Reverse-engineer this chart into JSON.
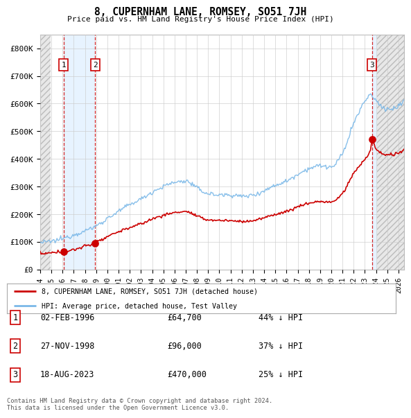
{
  "title": "8, CUPERNHAM LANE, ROMSEY, SO51 7JH",
  "subtitle": "Price paid vs. HM Land Registry's House Price Index (HPI)",
  "xlim_start": 1994.0,
  "xlim_end": 2026.5,
  "ylim": [
    0,
    850000
  ],
  "yticks": [
    0,
    100000,
    200000,
    300000,
    400000,
    500000,
    600000,
    700000,
    800000
  ],
  "ytick_labels": [
    "£0",
    "£100K",
    "£200K",
    "£300K",
    "£400K",
    "£500K",
    "£600K",
    "£700K",
    "£800K"
  ],
  "sale_dates": [
    1996.085,
    1998.9,
    2023.63
  ],
  "sale_prices": [
    64700,
    96000,
    470000
  ],
  "sale_labels": [
    "1",
    "2",
    "3"
  ],
  "hpi_color": "#7ab8e8",
  "price_color": "#cc0000",
  "dashed_vline_color": "#cc0000",
  "shaded_region_color": "#ddeeff",
  "background_color": "#ffffff",
  "grid_color": "#cccccc",
  "legend_label_price": "8, CUPERNHAM LANE, ROMSEY, SO51 7JH (detached house)",
  "legend_label_hpi": "HPI: Average price, detached house, Test Valley",
  "table_rows": [
    {
      "num": "1",
      "date": "02-FEB-1996",
      "price": "£64,700",
      "hpi": "44% ↓ HPI"
    },
    {
      "num": "2",
      "date": "27-NOV-1998",
      "price": "£96,000",
      "hpi": "37% ↓ HPI"
    },
    {
      "num": "3",
      "date": "18-AUG-2023",
      "price": "£470,000",
      "hpi": "25% ↓ HPI"
    }
  ],
  "footnote": "Contains HM Land Registry data © Crown copyright and database right 2024.\nThis data is licensed under the Open Government Licence v3.0.",
  "xtick_years": [
    1994,
    1995,
    1996,
    1997,
    1998,
    1999,
    2000,
    2001,
    2002,
    2003,
    2004,
    2005,
    2006,
    2007,
    2008,
    2009,
    2010,
    2011,
    2012,
    2013,
    2014,
    2015,
    2016,
    2017,
    2018,
    2019,
    2020,
    2021,
    2022,
    2023,
    2024,
    2025,
    2026
  ],
  "hatch_left_end": 1994.92,
  "hatch_right_start": 2024.08,
  "blue_band_1_start": 1996.085,
  "blue_band_1_end": 1998.9,
  "blue_band_2_start": 2023.63,
  "blue_band_2_end": 2024.08
}
